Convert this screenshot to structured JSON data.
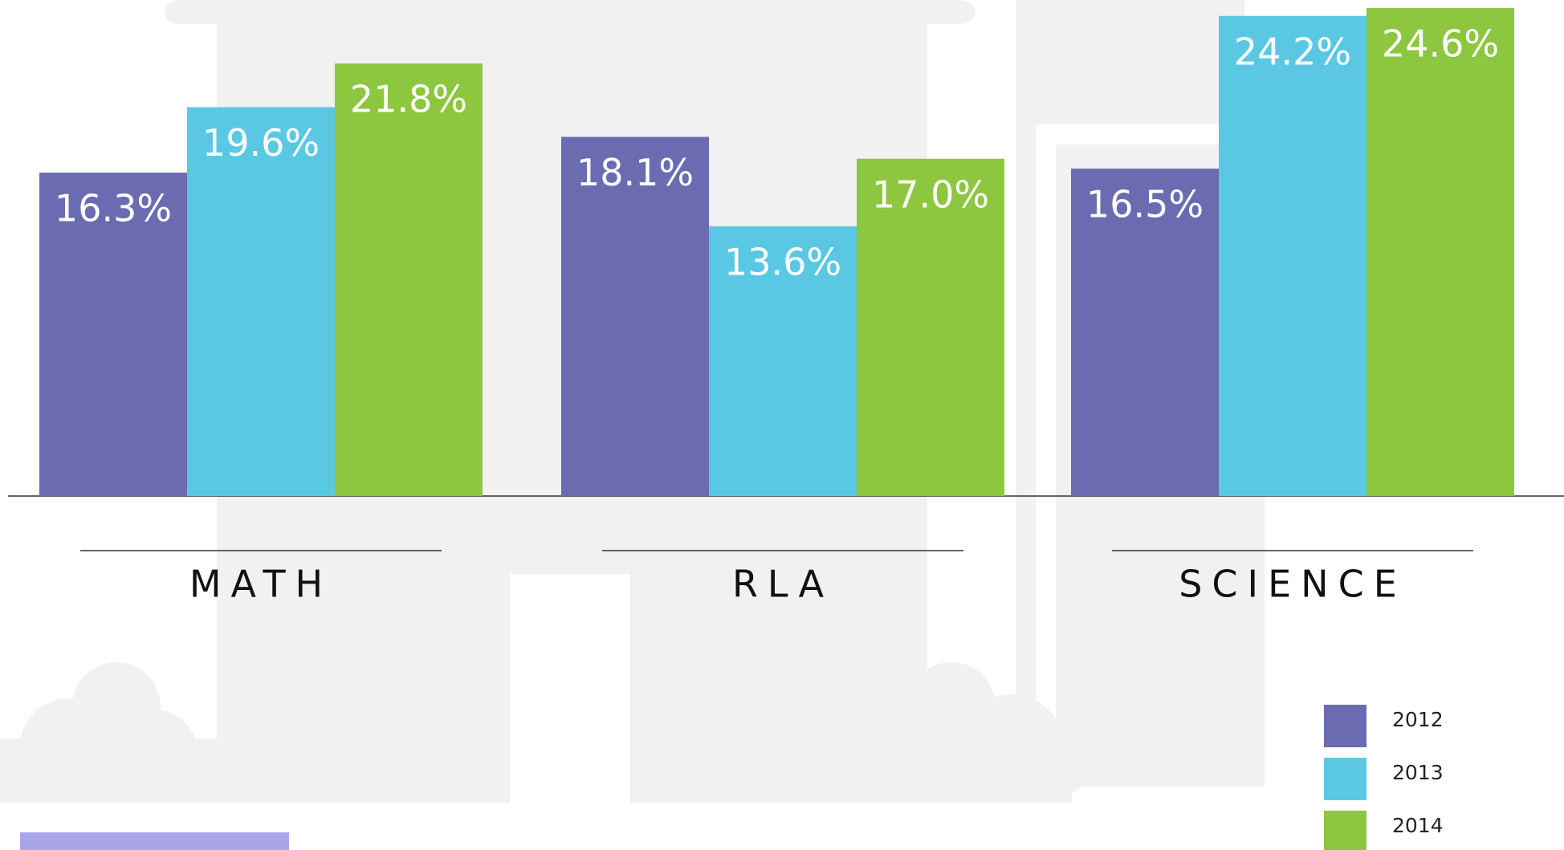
{
  "chart_data": {
    "type": "bar",
    "categories": [
      "MATH",
      "RLA",
      "SCIENCE"
    ],
    "series": [
      {
        "name": "2012",
        "color": "#6a6bb1",
        "values": [
          16.3,
          18.1,
          16.5
        ],
        "value_labels": [
          "16.3%",
          "18.1%",
          "16.5%"
        ]
      },
      {
        "name": "2013",
        "color": "#5bc8e3",
        "values": [
          19.6,
          13.6,
          24.2
        ],
        "value_labels": [
          "19.6%",
          "13.6%",
          "24.2%"
        ]
      },
      {
        "name": "2014",
        "color": "#8dc63f",
        "values": [
          21.8,
          17.0,
          24.6
        ],
        "value_labels": [
          "21.8%",
          "17.0%",
          "24.6%"
        ]
      }
    ],
    "ylim": [
      0,
      25
    ],
    "legend": "bottom-right"
  }
}
